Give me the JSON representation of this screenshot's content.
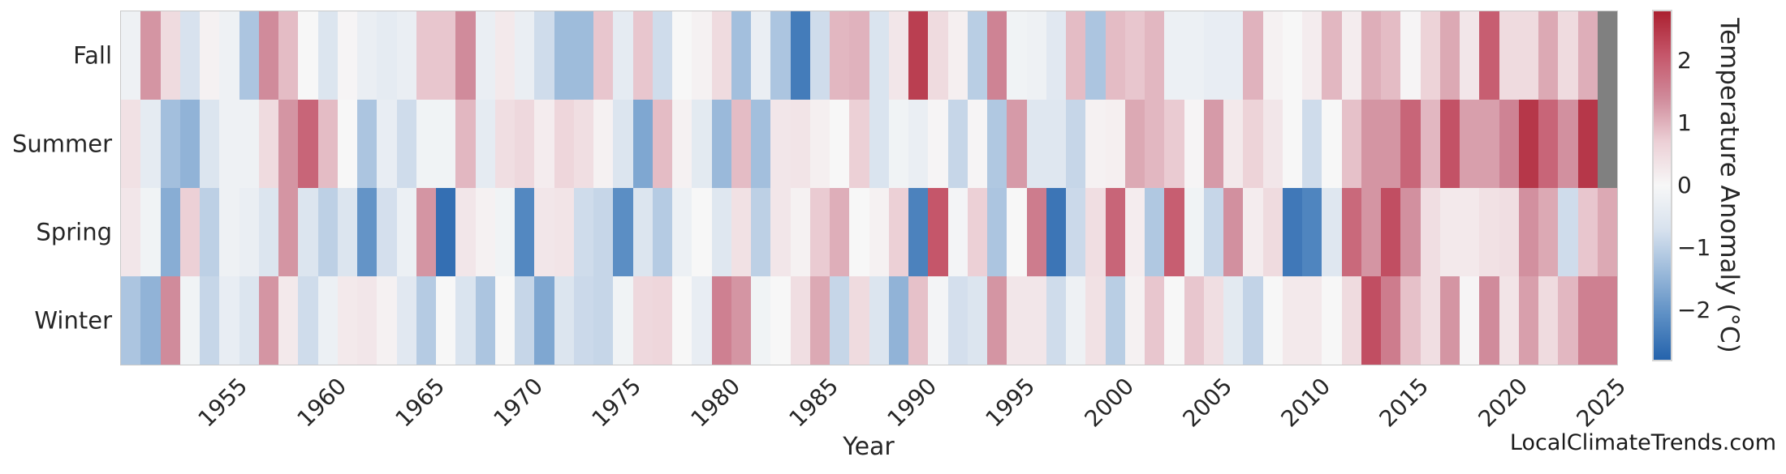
{
  "watermark": "LocalClimateTrends.com",
  "chart_data": {
    "type": "heatmap",
    "x_label": "Year",
    "year_start": 1950,
    "year_end": 2025,
    "x_ticks": [
      1955,
      1960,
      1965,
      1970,
      1975,
      1980,
      1985,
      1990,
      1995,
      2000,
      2005,
      2010,
      2015,
      2020,
      2025
    ],
    "rows": [
      "Fall",
      "Summer",
      "Spring",
      "Winter"
    ],
    "series": [
      {
        "name": "Fall",
        "values": [
          -0.2,
          1.3,
          0.5,
          -0.7,
          0.1,
          -0.2,
          -1.2,
          1.4,
          0.9,
          0.0,
          -0.6,
          0.05,
          -0.3,
          -0.4,
          -0.3,
          0.8,
          0.8,
          1.4,
          -0.3,
          0.25,
          -0.3,
          -0.8,
          -1.35,
          -1.35,
          0.8,
          -0.4,
          0.8,
          -0.8,
          0.0,
          0.1,
          0.5,
          -1.3,
          -0.3,
          -1.2,
          -2.4,
          -0.8,
          0.95,
          1.0,
          -0.65,
          0.3,
          2.4,
          0.5,
          0.15,
          -1.05,
          1.5,
          -0.15,
          -0.2,
          -0.5,
          0.9,
          -1.2,
          0.9,
          0.8,
          0.95,
          -0.25,
          -0.25,
          -0.35,
          -0.35,
          1.0,
          0.1,
          0.0,
          0.2,
          0.95,
          0.2,
          1.05,
          0.9,
          0.05,
          0.65,
          1.1,
          0.3,
          2.0,
          0.5,
          0.5,
          1.1,
          0.5,
          1.05,
          null
        ]
      },
      {
        "name": "Summer",
        "values": [
          0.4,
          -0.4,
          -1.3,
          -1.5,
          -0.6,
          -0.2,
          -0.2,
          0.5,
          1.3,
          1.9,
          0.9,
          0.0,
          -1.2,
          -0.35,
          -0.8,
          -0.15,
          -0.15,
          0.95,
          -0.4,
          0.45,
          0.55,
          0.2,
          0.6,
          0.45,
          0.1,
          -0.6,
          -1.7,
          0.9,
          0.1,
          -0.45,
          -1.4,
          0.9,
          -1.3,
          0.3,
          0.35,
          0.15,
          0.0,
          0.7,
          -0.65,
          -0.15,
          -0.3,
          0.05,
          -0.9,
          0.05,
          -1.15,
          1.25,
          -0.55,
          -0.55,
          -0.9,
          0.1,
          0.15,
          1.1,
          0.95,
          0.75,
          0.05,
          1.25,
          0.25,
          0.65,
          0.3,
          0.0,
          -0.8,
          0.0,
          0.85,
          1.3,
          1.3,
          1.9,
          0.95,
          2.15,
          1.2,
          1.2,
          1.5,
          2.5,
          1.9,
          1.35,
          2.5,
          null
        ]
      },
      {
        "name": "Spring",
        "values": [
          0.3,
          -0.15,
          -1.6,
          0.7,
          -1.0,
          -0.2,
          -0.3,
          -0.6,
          1.3,
          -0.6,
          -1.0,
          -0.6,
          -2.0,
          -0.75,
          -0.25,
          1.3,
          -2.6,
          0.3,
          0.1,
          -0.15,
          -2.2,
          0.3,
          0.35,
          -0.8,
          -0.9,
          -2.1,
          -0.6,
          -1.1,
          -0.25,
          0.0,
          -0.55,
          0.4,
          -1.0,
          0.3,
          0.1,
          0.75,
          1.05,
          0.0,
          0.1,
          0.7,
          -2.3,
          2.1,
          -0.1,
          0.7,
          -1.2,
          0.0,
          1.6,
          -2.5,
          -0.85,
          0.45,
          1.9,
          0.2,
          -1.15,
          2.0,
          -0.15,
          -0.9,
          1.35,
          0.2,
          0.5,
          -2.45,
          -2.25,
          -0.55,
          1.85,
          1.3,
          2.2,
          1.35,
          0.45,
          0.25,
          0.25,
          0.4,
          0.45,
          1.35,
          1.1,
          -0.8,
          0.8,
          1.1
        ]
      },
      {
        "name": "Winter",
        "values": [
          -1.2,
          -1.5,
          1.4,
          -0.15,
          -0.9,
          -0.35,
          -0.6,
          1.3,
          0.25,
          -0.8,
          -0.25,
          0.25,
          0.3,
          0.1,
          -0.5,
          -1.1,
          0.0,
          -0.65,
          -1.2,
          0.0,
          -0.9,
          -1.7,
          -0.6,
          -0.85,
          -0.9,
          -0.15,
          0.55,
          0.6,
          0.0,
          -0.35,
          1.55,
          1.3,
          -0.15,
          0.0,
          0.45,
          1.1,
          -0.9,
          0.5,
          -0.6,
          -1.5,
          0.85,
          -0.1,
          -0.75,
          -0.6,
          1.3,
          0.3,
          0.3,
          -0.8,
          -0.2,
          0.4,
          -1.05,
          0.1,
          0.8,
          0.0,
          0.8,
          0.45,
          -0.45,
          -0.95,
          0.0,
          0.25,
          0.25,
          0.0,
          0.5,
          2.2,
          1.6,
          0.85,
          0.45,
          1.3,
          0.05,
          1.4,
          0.35,
          1.2,
          0.5,
          0.95,
          1.55,
          1.55
        ]
      }
    ],
    "colorbar": {
      "label": "Temperature Anomaly (°C)",
      "ticks": [
        2,
        1,
        0,
        -1,
        -2
      ],
      "tick_labels": [
        "2",
        "1",
        "0",
        "−1",
        "−2"
      ],
      "vmin": -2.8,
      "vmax": 2.8,
      "position": "right",
      "nan_color": "#808080",
      "palette": [
        {
          "t": -1.0,
          "color": "#2563ac"
        },
        {
          "t": -0.75,
          "color": "#5b8ec4"
        },
        {
          "t": -0.5,
          "color": "#9ab9da"
        },
        {
          "t": -0.25,
          "color": "#d8e2ee"
        },
        {
          "t": 0.0,
          "color": "#f7f7f7"
        },
        {
          "t": 0.25,
          "color": "#ecd0d6"
        },
        {
          "t": 0.5,
          "color": "#d08b9b"
        },
        {
          "t": 0.75,
          "color": "#c5566a"
        },
        {
          "t": 1.0,
          "color": "#ab2030"
        }
      ]
    },
    "grid": false,
    "missing_cells": [
      "Fall 2025",
      "Summer 2025"
    ]
  }
}
